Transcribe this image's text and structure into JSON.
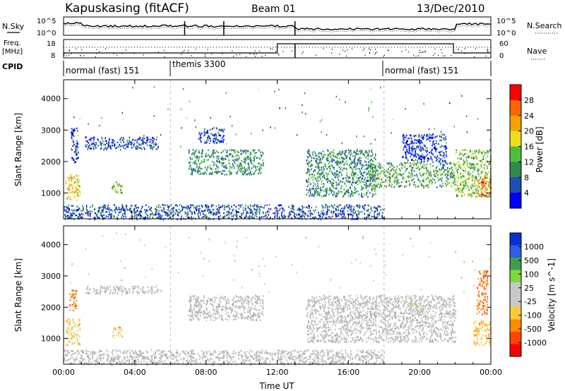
{
  "header": {
    "station": "Kapuskasing (fitACF)",
    "beam": "Beam 01",
    "date": "13/Dec/2010"
  },
  "top_panel": {
    "left_labels": [
      "N.Sky",
      "Freq.",
      "[MHz]",
      "CPID"
    ],
    "right_labels": [
      "N.Search",
      "Nave"
    ],
    "noise_ticks_left": [
      "10^5",
      "10^0"
    ],
    "noise_ticks_right": [
      "10^5",
      "10^0"
    ],
    "freq_ticks": [
      "18",
      "8"
    ],
    "nave_ticks": [
      "60",
      "0"
    ],
    "cpid_segments": [
      {
        "label": "normal (fast) 151",
        "start_hour": 0
      },
      {
        "label": "themis 3300",
        "start_hour": 6
      },
      {
        "label": "normal (fast) 151",
        "start_hour": 18
      }
    ]
  },
  "colors": {
    "power_scale": [
      "#0000ff",
      "#1e4fb4",
      "#2f8a4a",
      "#4dbf3a",
      "#f0dc1e",
      "#f5a000",
      "#ff6400",
      "#ff0000"
    ],
    "velocity_scale": [
      "#0a2fd0",
      "#2d5fe0",
      "#3fa04a",
      "#7cd93a",
      "#c8c8c8",
      "#c8c8c8",
      "#ffcc33",
      "#ff8c00",
      "#ff4500",
      "#ff0000"
    ],
    "ground_scatter": "#b4b4b4"
  },
  "chart_data": [
    {
      "type": "heatmap",
      "panel": "power",
      "xlabel": "",
      "ylabel": "Slant Range [km]",
      "x_ticks": [
        "00:00",
        "04:00",
        "08:00",
        "12:00",
        "16:00",
        "20:00",
        "00:00"
      ],
      "xlim_hours": [
        0,
        24
      ],
      "ylim_km": [
        180,
        4600
      ],
      "y_ticks": [
        1000,
        2000,
        3000,
        4000
      ],
      "colorbar": {
        "label": "Power [dB]",
        "ticks": [
          "4",
          "8",
          "12",
          "16",
          "20",
          "24",
          "28"
        ],
        "range": [
          0,
          30
        ]
      },
      "regions": [
        {
          "t0": 0.1,
          "t1": 0.9,
          "r0": 800,
          "r1": 1600,
          "level": 18
        },
        {
          "t0": 0.4,
          "t1": 0.8,
          "r0": 1900,
          "r1": 3100,
          "level": 4
        },
        {
          "t0": 1.2,
          "t1": 5.3,
          "r0": 2400,
          "r1": 2800,
          "level": 5
        },
        {
          "t0": 2.7,
          "t1": 3.3,
          "r0": 1000,
          "r1": 1400,
          "level": 14
        },
        {
          "t0": 7.0,
          "t1": 11.2,
          "r0": 1600,
          "r1": 2400,
          "level": 10
        },
        {
          "t0": 7.5,
          "t1": 9.0,
          "r0": 2600,
          "r1": 3100,
          "level": 5
        },
        {
          "t0": 13.6,
          "t1": 17.5,
          "r0": 900,
          "r1": 2400,
          "level": 9
        },
        {
          "t0": 17.0,
          "t1": 22.0,
          "r0": 1200,
          "r1": 2000,
          "level": 11
        },
        {
          "t0": 19.0,
          "t1": 21.5,
          "r0": 2000,
          "r1": 2900,
          "level": 4
        },
        {
          "t0": 22.0,
          "t1": 24.0,
          "r0": 900,
          "r1": 2400,
          "level": 13
        },
        {
          "t0": 23.2,
          "t1": 24.0,
          "r0": 900,
          "r1": 1500,
          "level": 24
        },
        {
          "t0": 0.0,
          "t1": 18.0,
          "r0": 180,
          "r1": 650,
          "level": 6
        }
      ]
    },
    {
      "type": "heatmap",
      "panel": "velocity",
      "xlabel": "Time UT",
      "ylabel": "Slant Range [km]",
      "x_ticks": [
        "00:00",
        "04:00",
        "08:00",
        "12:00",
        "16:00",
        "20:00",
        "00:00"
      ],
      "xlim_hours": [
        0,
        24
      ],
      "ylim_km": [
        180,
        4600
      ],
      "y_ticks": [
        1000,
        2000,
        3000,
        4000
      ],
      "colorbar": {
        "label": "Velocity [m s^-1]",
        "ticks": [
          "1000",
          "500",
          "100",
          "25",
          "-25",
          "-100",
          "-500",
          "-1000"
        ],
        "range": [
          -1200,
          1200
        ]
      },
      "regions": [
        {
          "t0": 0.1,
          "t1": 0.9,
          "r0": 800,
          "r1": 1650,
          "velocity": -300
        },
        {
          "t0": 0.3,
          "t1": 0.7,
          "r0": 1900,
          "r1": 2600,
          "velocity": -700
        },
        {
          "t0": 1.2,
          "t1": 5.3,
          "r0": 2450,
          "r1": 2700,
          "velocity": 0
        },
        {
          "t0": 2.7,
          "t1": 3.3,
          "r0": 1050,
          "r1": 1400,
          "velocity": -300
        },
        {
          "t0": 7.0,
          "t1": 11.2,
          "r0": 1600,
          "r1": 2400,
          "velocity": 0
        },
        {
          "t0": 13.6,
          "t1": 22.0,
          "r0": 900,
          "r1": 2400,
          "velocity": 0
        },
        {
          "t0": 19.4,
          "t1": 20.3,
          "r0": 1950,
          "r1": 2150,
          "velocity": -150
        },
        {
          "t0": 23.0,
          "t1": 24.0,
          "r0": 800,
          "r1": 1600,
          "velocity": -400
        },
        {
          "t0": 23.2,
          "t1": 23.8,
          "r0": 1800,
          "r1": 3200,
          "velocity": -700
        },
        {
          "t0": 0.0,
          "t1": 18.0,
          "r0": 180,
          "r1": 650,
          "velocity": 0
        }
      ]
    }
  ]
}
